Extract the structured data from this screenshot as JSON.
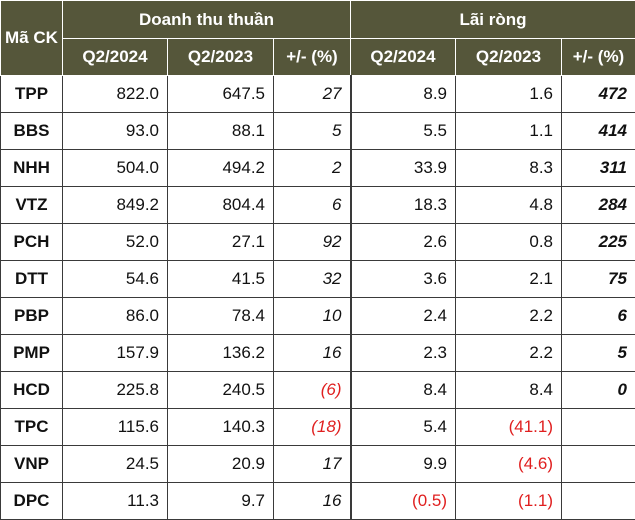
{
  "header": {
    "col_ticker": "Mã CK",
    "group_revenue": "Doanh thu thuần",
    "group_profit": "Lãi ròng",
    "sub_q2_2024": "Q2/2024",
    "sub_q2_2023": "Q2/2023",
    "sub_change": "+/- (%)"
  },
  "colors": {
    "header_bg": "#55563a",
    "negative": "#e01f1f"
  },
  "rows": [
    {
      "ticker": "TPP",
      "rev_2024": "822.0",
      "rev_2023": "647.5",
      "rev_chg": "27",
      "np_2024": "8.9",
      "np_2023": "1.6",
      "np_chg": "472"
    },
    {
      "ticker": "BBS",
      "rev_2024": "93.0",
      "rev_2023": "88.1",
      "rev_chg": "5",
      "np_2024": "5.5",
      "np_2023": "1.1",
      "np_chg": "414"
    },
    {
      "ticker": "NHH",
      "rev_2024": "504.0",
      "rev_2023": "494.2",
      "rev_chg": "2",
      "np_2024": "33.9",
      "np_2023": "8.3",
      "np_chg": "311"
    },
    {
      "ticker": "VTZ",
      "rev_2024": "849.2",
      "rev_2023": "804.4",
      "rev_chg": "6",
      "np_2024": "18.3",
      "np_2023": "4.8",
      "np_chg": "284"
    },
    {
      "ticker": "PCH",
      "rev_2024": "52.0",
      "rev_2023": "27.1",
      "rev_chg": "92",
      "np_2024": "2.6",
      "np_2023": "0.8",
      "np_chg": "225"
    },
    {
      "ticker": "DTT",
      "rev_2024": "54.6",
      "rev_2023": "41.5",
      "rev_chg": "32",
      "np_2024": "3.6",
      "np_2023": "2.1",
      "np_chg": "75"
    },
    {
      "ticker": "PBP",
      "rev_2024": "86.0",
      "rev_2023": "78.4",
      "rev_chg": "10",
      "np_2024": "2.4",
      "np_2023": "2.2",
      "np_chg": "6"
    },
    {
      "ticker": "PMP",
      "rev_2024": "157.9",
      "rev_2023": "136.2",
      "rev_chg": "16",
      "np_2024": "2.3",
      "np_2023": "2.2",
      "np_chg": "5"
    },
    {
      "ticker": "HCD",
      "rev_2024": "225.8",
      "rev_2023": "240.5",
      "rev_chg": "(6)",
      "np_2024": "8.4",
      "np_2023": "8.4",
      "np_chg": "0"
    },
    {
      "ticker": "TPC",
      "rev_2024": "115.6",
      "rev_2023": "140.3",
      "rev_chg": "(18)",
      "np_2024": "5.4",
      "np_2023": "(41.1)",
      "np_chg": ""
    },
    {
      "ticker": "VNP",
      "rev_2024": "24.5",
      "rev_2023": "20.9",
      "rev_chg": "17",
      "np_2024": "9.9",
      "np_2023": "(4.6)",
      "np_chg": ""
    },
    {
      "ticker": "DPC",
      "rev_2024": "11.3",
      "rev_2023": "9.7",
      "rev_chg": "16",
      "np_2024": "(0.5)",
      "np_2023": "(1.1)",
      "np_chg": ""
    }
  ]
}
